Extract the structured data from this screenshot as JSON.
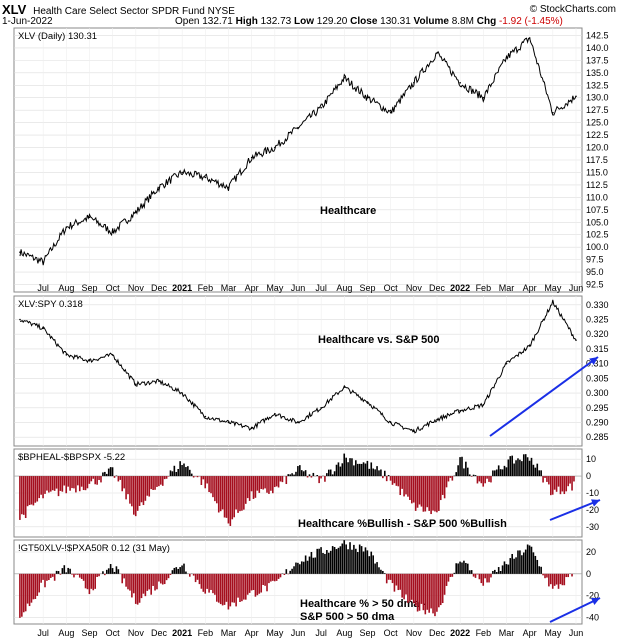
{
  "header": {
    "symbol": "XLV",
    "name": "Health Care Select Sector SPDR Fund NYSE",
    "source": "© StockCharts.com",
    "date": "1-Jun-2022",
    "open_label": "Open",
    "open": "132.71",
    "high_label": "High",
    "high": "132.73",
    "low_label": "Low",
    "low": "129.20",
    "close_label": "Close",
    "close": "130.31",
    "volume_label": "Volume",
    "volume": "8.8M",
    "chg_label": "Chg",
    "chg": "-1.92 (-1.45%)"
  },
  "colors": {
    "price": "#000000",
    "up_bar": "#000000",
    "down_bar": "#a50e1e",
    "arrow": "#1a2fe6",
    "grid": "#dddddd"
  },
  "x_axis": {
    "labels": [
      "Jul",
      "Aug",
      "Sep",
      "Oct",
      "Nov",
      "Dec",
      "2021",
      "Feb",
      "Mar",
      "Apr",
      "May",
      "Jun",
      "Jul",
      "Aug",
      "Sep",
      "Oct",
      "Nov",
      "Dec",
      "2022",
      "Feb",
      "Mar",
      "Apr",
      "May",
      "Jun"
    ]
  },
  "chart_data": [
    {
      "type": "line",
      "legend": "XLV (Daily) 130.31",
      "annotation": "Healthcare",
      "ylim": [
        91,
        144
      ],
      "y_ticks": [
        "92.5",
        "95.0",
        "97.5",
        "100.0",
        "102.5",
        "105.0",
        "107.5",
        "110.0",
        "112.5",
        "115.0",
        "117.5",
        "120.0",
        "122.5",
        "125.0",
        "127.5",
        "130.0",
        "132.5",
        "135.0",
        "137.5",
        "140.0",
        "142.5"
      ],
      "x": [
        "2020-06",
        "2020-07",
        "2020-08",
        "2020-09",
        "2020-10",
        "2020-11",
        "2020-12",
        "2021-01",
        "2021-02",
        "2021-03",
        "2021-04",
        "2021-05",
        "2021-06",
        "2021-07",
        "2021-08",
        "2021-09",
        "2021-10",
        "2021-11",
        "2021-12",
        "2022-01",
        "2022-02",
        "2022-03",
        "2022-04",
        "2022-05",
        "2022-06"
      ],
      "values": [
        99,
        97,
        104,
        106,
        103,
        107,
        112,
        115,
        114,
        112,
        118,
        120,
        124,
        128,
        134,
        130,
        127,
        133,
        139,
        133,
        130,
        138,
        142,
        127,
        130.3
      ]
    },
    {
      "type": "line",
      "legend": "XLV:SPY 0.318",
      "annotation": "Healthcare vs. S&P 500",
      "ylim": [
        0.282,
        0.333
      ],
      "y_ticks": [
        "0.285",
        "0.290",
        "0.295",
        "0.300",
        "0.305",
        "0.310",
        "0.315",
        "0.320",
        "0.325",
        "0.330"
      ],
      "x": [
        "2020-06",
        "2020-07",
        "2020-08",
        "2020-09",
        "2020-10",
        "2020-11",
        "2020-12",
        "2021-01",
        "2021-02",
        "2021-03",
        "2021-04",
        "2021-05",
        "2021-06",
        "2021-07",
        "2021-08",
        "2021-09",
        "2021-10",
        "2021-11",
        "2021-12",
        "2022-01",
        "2022-02",
        "2022-03",
        "2022-04",
        "2022-05",
        "2022-06"
      ],
      "values": [
        0.325,
        0.322,
        0.313,
        0.311,
        0.313,
        0.303,
        0.304,
        0.3,
        0.292,
        0.29,
        0.288,
        0.293,
        0.29,
        0.295,
        0.302,
        0.297,
        0.29,
        0.287,
        0.291,
        0.294,
        0.296,
        0.31,
        0.316,
        0.331,
        0.318
      ]
    },
    {
      "type": "bar",
      "legend": "$BPHEAL-$BPSPX -5.22",
      "annotation": "Healthcare %Bullish - S&P 500 %Bullish",
      "ylim": [
        -36,
        16
      ],
      "y_ticks": [
        "10",
        "0",
        "-10",
        "-20",
        "-30"
      ],
      "x": [
        "2020-06",
        "2020-07",
        "2020-08",
        "2020-09",
        "2020-10",
        "2020-11",
        "2020-12",
        "2021-01",
        "2021-02",
        "2021-03",
        "2021-04",
        "2021-05",
        "2021-06",
        "2021-07",
        "2021-08",
        "2021-09",
        "2021-10",
        "2021-11",
        "2021-12",
        "2022-01",
        "2022-02",
        "2022-03",
        "2022-04",
        "2022-05",
        "2022-06"
      ],
      "values": [
        -25,
        -12,
        -8,
        -5,
        3,
        -22,
        -5,
        8,
        -5,
        -28,
        -12,
        -8,
        4,
        -3,
        11,
        7,
        -2,
        -18,
        -22,
        10,
        -5,
        8,
        12,
        -10,
        -5.22
      ]
    },
    {
      "type": "bar",
      "legend": "!GT50XLV-!$PXA50R 0.12 (31 May)",
      "annotation": "Healthcare % > 50 dma -\nS&P 500 > 50 dma",
      "ylim": [
        -46,
        31
      ],
      "y_ticks": [
        "20",
        "0",
        "-20",
        "-40"
      ],
      "x": [
        "2020-06",
        "2020-07",
        "2020-08",
        "2020-09",
        "2020-10",
        "2020-11",
        "2020-12",
        "2021-01",
        "2021-02",
        "2021-03",
        "2021-04",
        "2021-05",
        "2021-06",
        "2021-07",
        "2021-08",
        "2021-09",
        "2021-10",
        "2021-11",
        "2021-12",
        "2022-01",
        "2022-02",
        "2022-03",
        "2022-04",
        "2022-05",
        "2022-06"
      ],
      "values": [
        -40,
        -10,
        5,
        -15,
        8,
        -25,
        -10,
        10,
        -15,
        -30,
        -18,
        -10,
        12,
        20,
        28,
        22,
        -10,
        -30,
        -35,
        15,
        -10,
        10,
        25,
        -15,
        0.12
      ]
    }
  ]
}
